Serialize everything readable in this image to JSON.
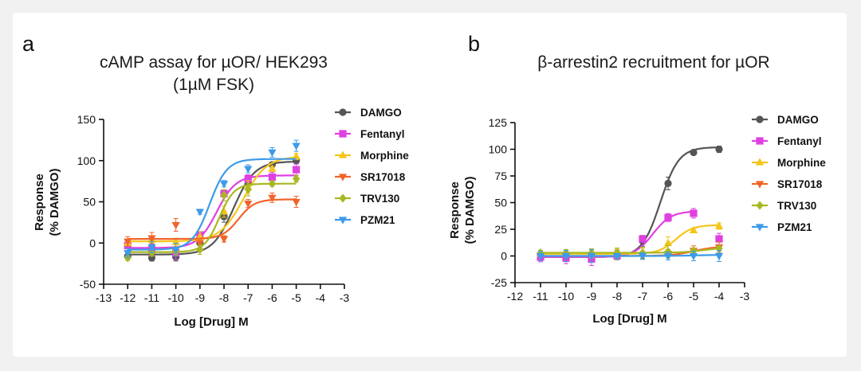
{
  "chart_data": [
    {
      "type": "scatter",
      "panel_label": "a",
      "title_lines": [
        "cAMP assay for µOR/ HEK293",
        "(1µM FSK)"
      ],
      "xlabel": "Log [Drug] M",
      "ylabel_lines": [
        "Response",
        "(% DAMGO)"
      ],
      "xlim": [
        -13,
        -3
      ],
      "ylim": [
        -50,
        150
      ],
      "xticks": [
        -13,
        -12,
        -11,
        -10,
        -9,
        -8,
        -7,
        -6,
        -5,
        -4,
        -3
      ],
      "yticks": [
        -50,
        0,
        50,
        100,
        150
      ],
      "legend_position": "right",
      "series": [
        {
          "name": "DAMGO",
          "color": "#555555",
          "marker": "circle",
          "x": [
            -12,
            -11,
            -10,
            -9,
            -8,
            -7,
            -6,
            -5
          ],
          "y": [
            -16,
            -18,
            -17,
            0,
            32,
            72,
            95,
            100
          ],
          "fit": {
            "bottom": -14,
            "top": 99,
            "ec50": -7.6,
            "hill": 1
          }
        },
        {
          "name": "Fentanyl",
          "color": "#e040e0",
          "marker": "square",
          "x": [
            -12,
            -11,
            -10,
            -9,
            -8,
            -7,
            -6,
            -5
          ],
          "y": [
            -3,
            -8,
            -12,
            10,
            60,
            78,
            80,
            89
          ],
          "fit": {
            "bottom": -6,
            "top": 82,
            "ec50": -8.3,
            "hill": 1.1
          }
        },
        {
          "name": "Morphine",
          "color": "#f5c518",
          "marker": "triangle-up",
          "x": [
            -12,
            -11,
            -10,
            -9,
            -8,
            -7,
            -6,
            -5
          ],
          "y": [
            0,
            4,
            1,
            8,
            38,
            68,
            90,
            105
          ],
          "fit": {
            "bottom": 2,
            "top": 105,
            "ec50": -7.2,
            "hill": 0.9
          }
        },
        {
          "name": "SR17018",
          "color": "#f0642a",
          "marker": "triangle-down",
          "x": [
            -12,
            -11,
            -10,
            -9,
            -8,
            -7,
            -6,
            -5
          ],
          "y": [
            2,
            6,
            22,
            0,
            5,
            48,
            55,
            50
          ],
          "fit": {
            "bottom": 5,
            "top": 53,
            "ec50": -7.4,
            "hill": 1.3
          }
        },
        {
          "name": "TRV130",
          "color": "#a9b820",
          "marker": "diamond",
          "x": [
            -12,
            -11,
            -10,
            -9,
            -8,
            -7,
            -6,
            -5
          ],
          "y": [
            -18,
            -12,
            -10,
            -8,
            58,
            65,
            72,
            78
          ],
          "fit": {
            "bottom": -11,
            "top": 72,
            "ec50": -8.2,
            "hill": 1.4
          }
        },
        {
          "name": "PZM21",
          "color": "#3d9be9",
          "marker": "triangle-down",
          "x": [
            -12,
            -11,
            -10,
            -9,
            -8,
            -7,
            -6,
            -5
          ],
          "y": [
            -12,
            -5,
            -8,
            38,
            72,
            90,
            110,
            118
          ],
          "fit": {
            "bottom": -8,
            "top": 102,
            "ec50": -8.6,
            "hill": 1.2
          }
        }
      ]
    },
    {
      "type": "scatter",
      "panel_label": "b",
      "title_lines": [
        "β-arrestin2 recruitment for µOR"
      ],
      "xlabel": "Log [Drug] M",
      "ylabel_lines": [
        "Response",
        "(% DAMGO)"
      ],
      "xlim": [
        -12,
        -3
      ],
      "ylim": [
        -25,
        125
      ],
      "xticks": [
        -12,
        -11,
        -10,
        -9,
        -8,
        -7,
        -6,
        -5,
        -4,
        -3
      ],
      "yticks": [
        -25,
        0,
        25,
        50,
        75,
        100,
        125
      ],
      "legend_position": "right",
      "series": [
        {
          "name": "DAMGO",
          "color": "#555555",
          "marker": "circle",
          "x": [
            -11,
            -10,
            -9,
            -8,
            -7,
            -6,
            -5,
            -4
          ],
          "y": [
            0,
            -1,
            0,
            1,
            14,
            68,
            97,
            100
          ],
          "fit": {
            "bottom": -1,
            "top": 102,
            "ec50": -6.3,
            "hill": 1.2
          }
        },
        {
          "name": "Fentanyl",
          "color": "#e040e0",
          "marker": "square",
          "x": [
            -11,
            -10,
            -9,
            -8,
            -7,
            -6,
            -5,
            -4
          ],
          "y": [
            -1,
            -2,
            -3,
            0,
            16,
            36,
            40,
            16
          ],
          "fit": {
            "bottom": -1,
            "top": 42,
            "ec50": -6.6,
            "hill": 1.2
          },
          "fit_xmax": -5
        },
        {
          "name": "Morphine",
          "color": "#f5c518",
          "marker": "triangle-up",
          "x": [
            -11,
            -10,
            -9,
            -8,
            -7,
            -6,
            -5,
            -4
          ],
          "y": [
            2,
            2,
            2,
            2,
            2,
            12,
            24,
            28
          ],
          "fit": {
            "bottom": 2,
            "top": 29,
            "ec50": -5.7,
            "hill": 1.3
          }
        },
        {
          "name": "SR17018",
          "color": "#f0642a",
          "marker": "triangle-down",
          "x": [
            -11,
            -10,
            -9,
            -8,
            -7,
            -6,
            -5,
            -4
          ],
          "y": [
            0,
            0,
            0,
            0,
            1,
            2,
            5,
            8
          ],
          "fit": {
            "bottom": 0,
            "top": 9,
            "ec50": -5.0,
            "hill": 1
          }
        },
        {
          "name": "TRV130",
          "color": "#a9b820",
          "marker": "diamond",
          "x": [
            -11,
            -10,
            -9,
            -8,
            -7,
            -6,
            -5,
            -4
          ],
          "y": [
            3,
            3,
            3,
            3,
            3,
            4,
            5,
            7
          ],
          "fit": {
            "bottom": 3,
            "top": 8,
            "ec50": -4.6,
            "hill": 1
          }
        },
        {
          "name": "PZM21",
          "color": "#3d9be9",
          "marker": "triangle-down",
          "x": [
            -11,
            -10,
            -9,
            -8,
            -7,
            -6,
            -5,
            -4
          ],
          "y": [
            0,
            0,
            0,
            0,
            0,
            0,
            0,
            0
          ],
          "fit": {
            "bottom": 0,
            "top": 1,
            "ec50": -5,
            "hill": 1
          }
        }
      ]
    }
  ]
}
